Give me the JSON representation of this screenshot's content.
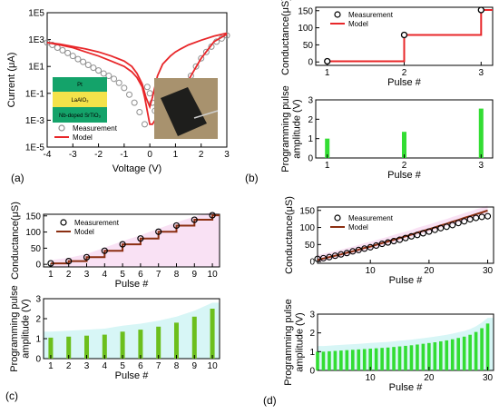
{
  "panels": {
    "a": "(a)",
    "b": "(b)",
    "c": "(c)",
    "d": "(d)"
  },
  "inset_layers": [
    "Pt",
    "LaAlO₃",
    "Nb-doped SrTiO₃"
  ],
  "colors": {
    "model_red": "#e8272a",
    "model_brown": "#8b2f12",
    "bar_green": "#33dd33",
    "bar_olive": "#6cbf1c",
    "gray_marker": "#8f8f8f",
    "pink_shade": "#f6d4f0",
    "cyan_shade": "#d7f6f6",
    "layer_green": "#14a36a",
    "layer_yellow": "#f4e24a",
    "photo_bg": "#a8926e"
  },
  "chart_data": [
    {
      "id": "a",
      "type": "line",
      "xlabel": "Voltage (V)",
      "ylabel": "Current (μA)",
      "log_y": true,
      "xlim": [
        -4,
        3
      ],
      "ylim_exp": [
        -5,
        5
      ],
      "xticks": [
        -4,
        -3,
        -2,
        -1,
        0,
        1,
        2,
        3
      ],
      "xtick_labels": [
        "-4",
        "-3",
        "-2",
        "-1",
        "0",
        "1",
        "2",
        "3"
      ],
      "ytick_exp": [
        -5,
        -3,
        -1,
        1,
        3,
        5
      ],
      "ytick_labels": [
        "1E-5",
        "1E-3",
        "1E-1",
        "1E1",
        "1E3",
        "1E5"
      ],
      "series": [
        {
          "name": "Measurement",
          "style": "marker",
          "x": [
            -4,
            -3.8,
            -3.6,
            -3.4,
            -3.2,
            -3,
            -2.8,
            -2.6,
            -2.4,
            -2.2,
            -2,
            -1.8,
            -1.6,
            -1.4,
            -1.2,
            -1,
            -0.8,
            -0.6,
            -0.4,
            -0.2,
            -0.1,
            0,
            0.1,
            0.2,
            0.4,
            0.6,
            0.8,
            1,
            1.2,
            1.4,
            1.6,
            1.8,
            2,
            2.2,
            2.4,
            2.6,
            2.8,
            3
          ],
          "y": [
            600,
            400,
            250,
            160,
            100,
            60,
            35,
            22,
            13,
            8,
            5,
            3,
            2,
            1.2,
            0.6,
            0.25,
            0.08,
            0.02,
            0.004,
            0.0005,
            0.3,
            0.1,
            0.02,
            0.005,
            0.002,
            0.001,
            0.003,
            0.01,
            0.05,
            0.3,
            2,
            10,
            40,
            120,
            300,
            700,
            1200,
            2000
          ]
        },
        {
          "name": "Model",
          "style": "line",
          "x": [
            -4,
            -3.5,
            -3,
            -2.5,
            -2,
            -1.5,
            -1,
            -0.7,
            -0.5,
            -0.3,
            -0.15,
            0,
            0.1,
            0.3,
            0.5,
            0.8,
            1,
            1.2,
            1.5,
            2,
            2.5,
            3
          ],
          "y": [
            600,
            450,
            300,
            200,
            120,
            60,
            25,
            10,
            3,
            0.5,
            0.05,
            0.01,
            0.05,
            2,
            15,
            60,
            120,
            200,
            400,
            900,
            1800,
            3000
          ]
        },
        {
          "name": "",
          "style": "line",
          "x": [
            -4,
            -3.5,
            -3,
            -2.5,
            -2,
            -1.5,
            -1,
            -0.7,
            -0.5,
            -0.3,
            -0.2,
            -0.1,
            0,
            0.1,
            0.2,
            0.4,
            0.6,
            0.8,
            1,
            1.2,
            1.4,
            1.6,
            2,
            2.5,
            3
          ],
          "y": [
            600,
            400,
            250,
            120,
            60,
            25,
            10,
            4,
            1.5,
            0.3,
            0.05,
            0.005,
            0.0005,
            0.0005,
            0.001,
            0.0015,
            0.002,
            0.004,
            0.01,
            0.05,
            0.3,
            2,
            40,
            700,
            2500
          ]
        }
      ]
    },
    {
      "id": "b1",
      "type": "line",
      "xlabel": "Pulse #",
      "ylabel": "Conductance(μS)",
      "xlim": [
        0.85,
        3.15
      ],
      "ylim": [
        -10,
        160
      ],
      "xticks": [
        1,
        2,
        3
      ],
      "yticks": [
        0,
        50,
        100,
        150
      ],
      "series": [
        {
          "name": "Measurement",
          "style": "marker",
          "x": [
            1,
            2,
            3
          ],
          "y": [
            2,
            79,
            152
          ]
        },
        {
          "name": "Model",
          "style": "step",
          "x": [
            1,
            2,
            3
          ],
          "y": [
            2,
            79,
            152
          ]
        }
      ]
    },
    {
      "id": "b2",
      "type": "bar",
      "xlabel": "Pulse #",
      "ylabel": "Programming pulse amplitude (V)",
      "xlim": [
        0.85,
        3.15
      ],
      "ylim": [
        0,
        3
      ],
      "xticks": [
        1,
        2,
        3
      ],
      "yticks": [
        0,
        1,
        2,
        3
      ],
      "x": [
        1,
        2,
        3
      ],
      "values": [
        1.0,
        1.35,
        2.55
      ]
    },
    {
      "id": "c1",
      "type": "line",
      "xlabel": "Pulse #",
      "ylabel": "Conductance(μS)",
      "xlim": [
        0.6,
        10.4
      ],
      "ylim": [
        -8,
        155
      ],
      "xticks": [
        1,
        2,
        3,
        4,
        5,
        6,
        7,
        8,
        9,
        10
      ],
      "yticks": [
        0,
        50,
        100,
        150
      ],
      "series": [
        {
          "name": "Measurement",
          "style": "marker",
          "x": [
            1,
            2,
            3,
            4,
            5,
            6,
            7,
            8,
            9,
            10
          ],
          "y": [
            3,
            10,
            22,
            42,
            62,
            80,
            101,
            120,
            138,
            152
          ]
        },
        {
          "name": "Model",
          "style": "step",
          "x": [
            1,
            2,
            3,
            4,
            5,
            6,
            7,
            8,
            9,
            10
          ],
          "y": [
            3,
            10,
            22,
            42,
            62,
            80,
            101,
            120,
            138,
            152
          ]
        }
      ]
    },
    {
      "id": "c2",
      "type": "bar",
      "xlabel": "Pulse #",
      "ylabel": "Programming pulse amplitude (V)",
      "xlim": [
        0.6,
        10.4
      ],
      "ylim": [
        0,
        3
      ],
      "xticks": [
        1,
        2,
        3,
        4,
        5,
        6,
        7,
        8,
        9,
        10
      ],
      "yticks": [
        0,
        1,
        2,
        3
      ],
      "x": [
        1,
        2,
        3,
        4,
        5,
        6,
        7,
        8,
        9,
        10
      ],
      "values": [
        1.05,
        1.1,
        1.15,
        1.2,
        1.35,
        1.45,
        1.6,
        1.8,
        2.1,
        2.5
      ]
    },
    {
      "id": "d1",
      "type": "line",
      "xlabel": "Pulse #",
      "ylabel": "Conductance(μS)",
      "xlim": [
        1,
        31
      ],
      "ylim": [
        -5,
        160
      ],
      "xticks": [
        10,
        20,
        30
      ],
      "yticks": [
        0,
        50,
        100,
        150
      ],
      "series": [
        {
          "name": "Measurement",
          "style": "marker",
          "x": [
            1,
            2,
            3,
            4,
            5,
            6,
            7,
            8,
            9,
            10,
            11,
            12,
            13,
            14,
            15,
            16,
            17,
            18,
            19,
            20,
            21,
            22,
            23,
            24,
            25,
            26,
            27,
            28,
            29,
            30
          ],
          "y": [
            8,
            10,
            13,
            17,
            21,
            25,
            30,
            34,
            38,
            42,
            47,
            52,
            56,
            60,
            64,
            69,
            74,
            78,
            83,
            88,
            93,
            98,
            102,
            107,
            113,
            118,
            124,
            128,
            131,
            133
          ]
        },
        {
          "name": "Model",
          "style": "line",
          "x": [
            1,
            2,
            3,
            4,
            5,
            6,
            7,
            8,
            9,
            10,
            11,
            12,
            13,
            14,
            15,
            16,
            17,
            18,
            19,
            20,
            21,
            22,
            23,
            24,
            25,
            26,
            27,
            28,
            29,
            30
          ],
          "y": [
            5,
            9,
            13,
            17,
            21,
            26,
            30,
            35,
            40,
            44,
            49,
            54,
            59,
            64,
            69,
            74,
            79,
            85,
            90,
            95,
            100,
            106,
            111,
            117,
            122,
            128,
            133,
            139,
            144,
            150
          ]
        }
      ]
    },
    {
      "id": "d2",
      "type": "bar",
      "xlabel": "Pulse #",
      "ylabel": "Programming pulse amplitude (V)",
      "xlim": [
        1,
        31
      ],
      "ylim": [
        0,
        3
      ],
      "xticks": [
        10,
        20,
        30
      ],
      "yticks": [
        0,
        1,
        2,
        3
      ],
      "x": [
        1,
        2,
        3,
        4,
        5,
        6,
        7,
        8,
        9,
        10,
        11,
        12,
        13,
        14,
        15,
        16,
        17,
        18,
        19,
        20,
        21,
        22,
        23,
        24,
        25,
        26,
        27,
        28,
        29,
        30
      ],
      "values": [
        1.0,
        1.0,
        1.02,
        1.04,
        1.06,
        1.08,
        1.1,
        1.12,
        1.14,
        1.16,
        1.18,
        1.2,
        1.22,
        1.25,
        1.28,
        1.31,
        1.34,
        1.38,
        1.42,
        1.46,
        1.5,
        1.55,
        1.6,
        1.66,
        1.73,
        1.8,
        1.9,
        2.05,
        2.25,
        2.5
      ]
    }
  ]
}
